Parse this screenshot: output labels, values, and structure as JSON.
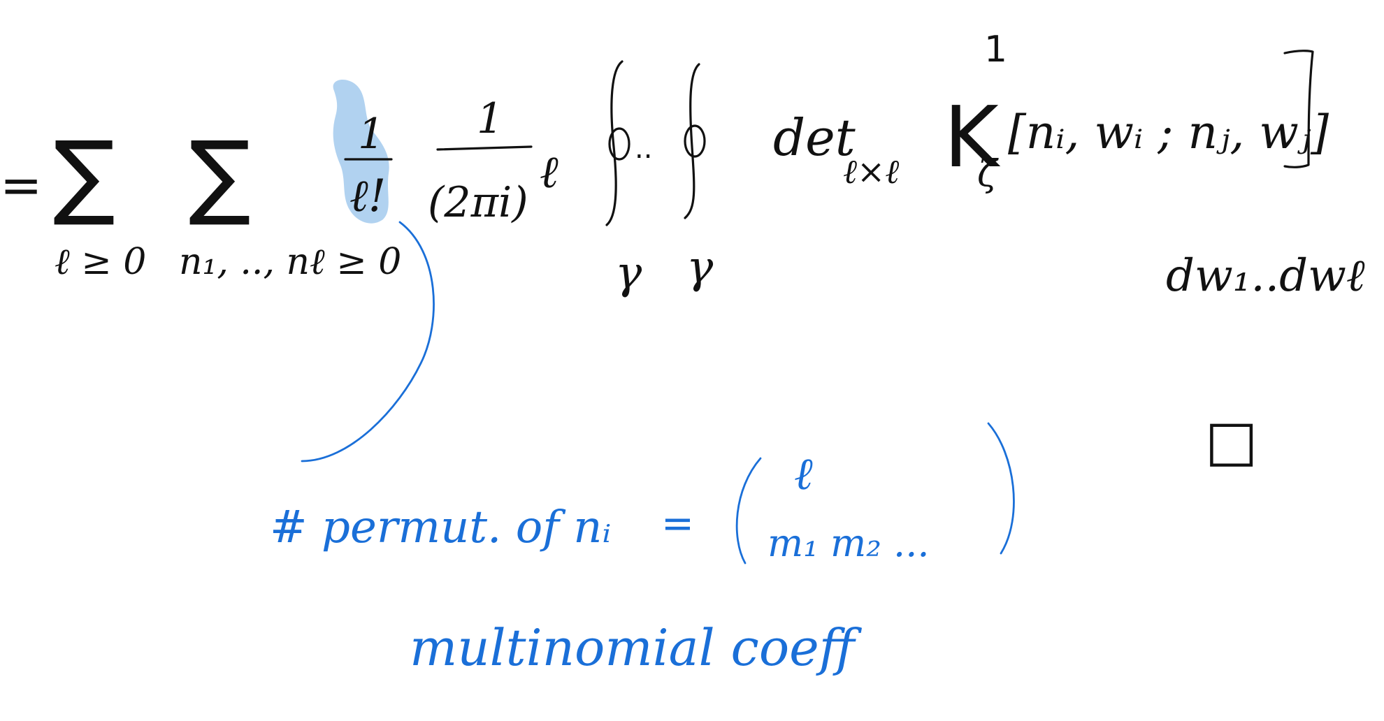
{
  "formula": {
    "equals": "=",
    "sum_index_1": "ℓ ≥ 0",
    "sum_index_2": "n₁, .., nℓ ≥ 0",
    "frac1_num": "1",
    "frac1_den": "ℓ!",
    "frac2_num": "1",
    "frac2_den": "(2πi)",
    "frac2_exp": "ℓ",
    "contour_dots": "..",
    "contour_label_1": "γ",
    "contour_label_2": "γ",
    "det": "det",
    "det_sub": "ℓ×ℓ",
    "kernel": "K",
    "kernel_sup": "1",
    "kernel_sub": "ζ",
    "kernel_args": "[nᵢ, wᵢ ; nⱼ, wⱼ]",
    "differentials": "dw₁..dwℓ",
    "qed": "□"
  },
  "annotation": {
    "line1": "# permut. of nᵢ",
    "eq": "=",
    "binom_top": "ℓ",
    "binom_bottom": "m₁  m₂ ...",
    "line2": "multinomial coeff"
  },
  "colors": {
    "ink": "#111111",
    "annotation": "#1a6fd8",
    "highlight": "#a9cdee"
  }
}
